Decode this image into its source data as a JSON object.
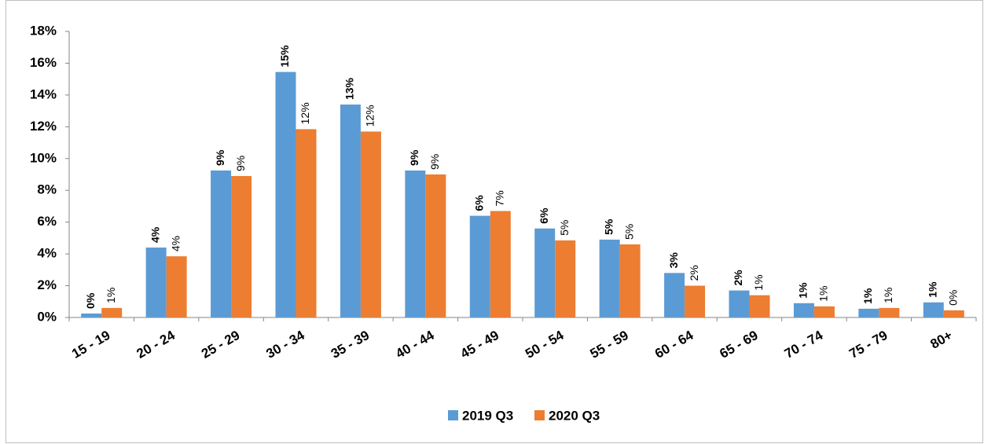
{
  "chart_data": {
    "type": "bar",
    "categories": [
      "15 - 19",
      "20 - 24",
      "25 - 29",
      "30 - 34",
      "35 - 39",
      "40 - 44",
      "45 - 49",
      "50 - 54",
      "55 - 59",
      "60 - 64",
      "65 - 69",
      "70 - 74",
      "75 - 79",
      "80+"
    ],
    "series": [
      {
        "name": "2019 Q3",
        "color": "#5b9bd5",
        "values": [
          0.25,
          4.4,
          9.25,
          15.45,
          13.4,
          9.25,
          6.4,
          5.6,
          4.9,
          2.8,
          1.7,
          0.9,
          0.55,
          0.95
        ],
        "value_labels": [
          "0%",
          "4%",
          "9%",
          "15%",
          "13%",
          "9%",
          "6%",
          "6%",
          "5%",
          "3%",
          "2%",
          "1%",
          "1%",
          "1%"
        ]
      },
      {
        "name": "2020 Q3",
        "color": "#ed7d31",
        "values": [
          0.6,
          3.85,
          8.9,
          11.85,
          11.7,
          9.0,
          6.7,
          4.85,
          4.6,
          2.0,
          1.4,
          0.7,
          0.6,
          0.45
        ],
        "value_labels": [
          "1%",
          "4%",
          "9%",
          "12%",
          "12%",
          "9%",
          "7%",
          "5%",
          "5%",
          "2%",
          "1%",
          "1%",
          "1%",
          "0%"
        ]
      }
    ],
    "ylim": [
      0,
      18
    ],
    "yticks": [
      {
        "value": 0,
        "label": "0%"
      },
      {
        "value": 2,
        "label": "2%"
      },
      {
        "value": 4,
        "label": "4%"
      },
      {
        "value": 6,
        "label": "6%"
      },
      {
        "value": 8,
        "label": "8%"
      },
      {
        "value": 10,
        "label": "10%"
      },
      {
        "value": 12,
        "label": "12%"
      },
      {
        "value": 14,
        "label": "14%"
      },
      {
        "value": 16,
        "label": "16%"
      },
      {
        "value": 18,
        "label": "18%"
      }
    ],
    "grid": false,
    "legend": "bottom"
  }
}
